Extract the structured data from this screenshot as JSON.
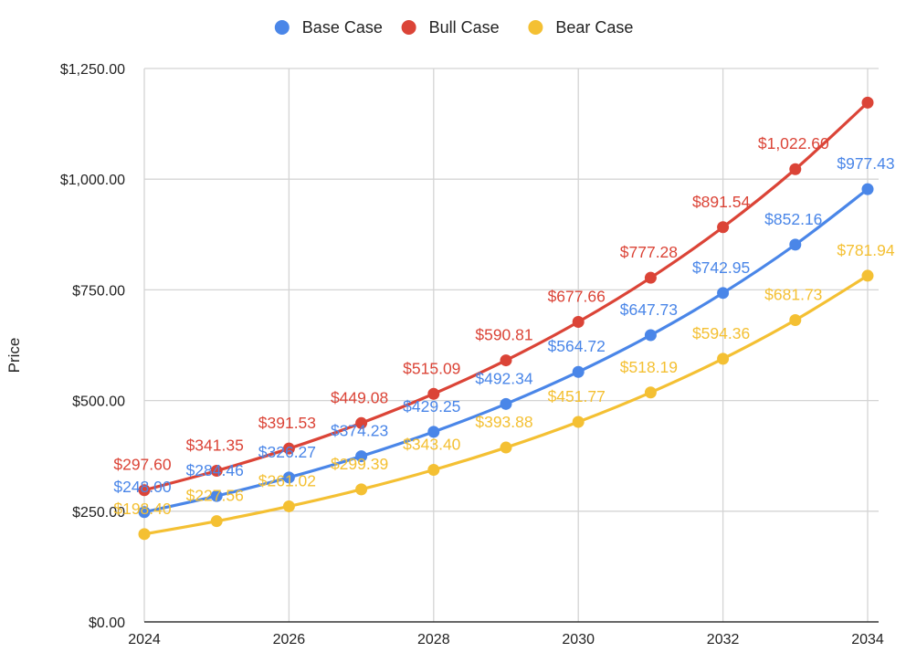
{
  "chart_data": {
    "type": "line",
    "title": "",
    "xlabel": "",
    "ylabel": "Price",
    "x": [
      2024,
      2025,
      2026,
      2027,
      2028,
      2029,
      2030,
      2031,
      2032,
      2033,
      2034
    ],
    "xlim": [
      2024,
      2034
    ],
    "x_tick_values": [
      2024,
      2026,
      2028,
      2030,
      2032,
      2034
    ],
    "x_tick_labels": [
      "2024",
      "2026",
      "2028",
      "2030",
      "2032",
      "2034"
    ],
    "ylim": [
      0,
      1250
    ],
    "y_tick_values": [
      0,
      250,
      500,
      750,
      1000,
      1250
    ],
    "y_tick_labels": [
      "$0.00",
      "$250.00",
      "$500.00",
      "$750.00",
      "$1,000.00",
      "$1,250.00"
    ],
    "grid": true,
    "legend_position": "top-center",
    "series": [
      {
        "name": "Base Case",
        "color": "#4a86e8",
        "values": [
          248.0,
          284.46,
          326.27,
          374.23,
          429.25,
          492.34,
          564.72,
          647.73,
          742.95,
          852.16,
          977.43
        ],
        "labels": [
          "$248.00",
          "$284.46",
          "$326.27",
          "$374.23",
          "$429.25",
          "$492.34",
          "$564.72",
          "$647.73",
          "$742.95",
          "$852.16",
          "$977.43"
        ]
      },
      {
        "name": "Bull Case",
        "color": "#db4437",
        "values": [
          297.6,
          341.35,
          391.53,
          449.08,
          515.09,
          590.81,
          677.66,
          777.28,
          891.54,
          1022.6,
          1172.92
        ],
        "labels": [
          "$297.60",
          "$341.35",
          "$391.53",
          "$449.08",
          "$515.09",
          "$590.81",
          "$677.66",
          "$777.28",
          "$891.54",
          "$1,022.60",
          ""
        ]
      },
      {
        "name": "Bear Case",
        "color": "#f4c033",
        "values": [
          198.4,
          227.56,
          261.02,
          299.39,
          343.4,
          393.88,
          451.77,
          518.19,
          594.36,
          681.73,
          781.94
        ],
        "labels": [
          "$198.40",
          "$227.56",
          "$261.02",
          "$299.39",
          "$343.40",
          "$393.88",
          "$451.77",
          "$518.19",
          "$594.36",
          "$681.73",
          "$781.94"
        ]
      }
    ]
  }
}
